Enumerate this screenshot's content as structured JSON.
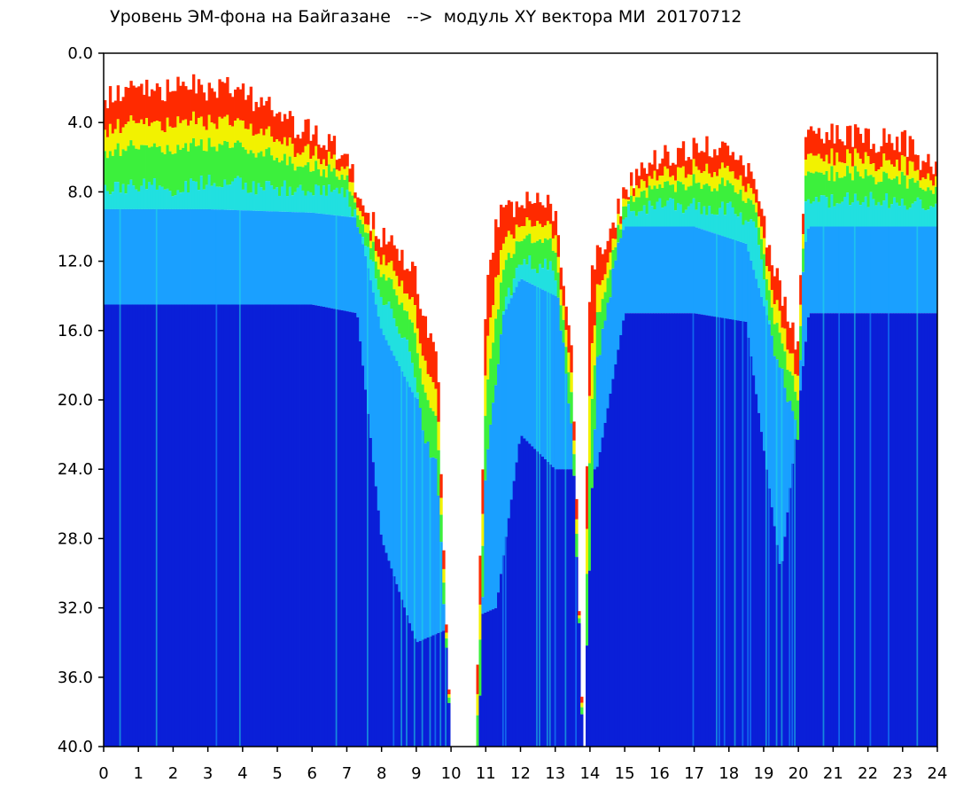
{
  "chart_data": {
    "type": "heatmap",
    "title": "Уровень ЭМ-фона на Байгазане   -->  модуль XY вектора МИ  20170712",
    "xlabel": "",
    "ylabel": "",
    "xlim": [
      0,
      24
    ],
    "ylim": [
      0,
      40
    ],
    "y_inverted": true,
    "x_ticks": [
      "0",
      "1",
      "2",
      "3",
      "4",
      "5",
      "6",
      "7",
      "8",
      "9",
      "10",
      "11",
      "12",
      "13",
      "14",
      "15",
      "16",
      "17",
      "18",
      "19",
      "20",
      "21",
      "22",
      "23",
      "24"
    ],
    "y_ticks": [
      "0.0",
      "4.0",
      "8.0",
      "12.0",
      "16.0",
      "20.0",
      "24.0",
      "28.0",
      "32.0",
      "36.0",
      "40.0"
    ],
    "color_scale": [
      "#0a1fd8",
      "#1aa0ff",
      "#21e0e0",
      "#3cf03c",
      "#f2f200",
      "#ff2a00"
    ],
    "grid": false,
    "upper_boundary": [
      [
        0.0,
        2.5
      ],
      [
        0.5,
        2.2
      ],
      [
        1.0,
        2.0
      ],
      [
        1.5,
        2.3
      ],
      [
        2.0,
        2.2
      ],
      [
        2.5,
        1.8
      ],
      [
        3.0,
        2.0
      ],
      [
        3.5,
        1.9
      ],
      [
        4.0,
        2.3
      ],
      [
        4.5,
        2.8
      ],
      [
        5.0,
        3.6
      ],
      [
        5.5,
        4.2
      ],
      [
        6.0,
        4.6
      ],
      [
        6.5,
        5.2
      ],
      [
        7.0,
        6.0
      ],
      [
        7.3,
        8.0
      ],
      [
        7.6,
        9.5
      ],
      [
        8.0,
        10.5
      ],
      [
        8.5,
        11.5
      ],
      [
        9.0,
        13.0
      ],
      [
        9.3,
        16.0
      ],
      [
        9.6,
        17.5
      ],
      [
        10.0,
        40.0
      ],
      [
        10.7,
        40.0
      ],
      [
        10.9,
        25.0
      ],
      [
        11.0,
        14.0
      ],
      [
        11.3,
        9.5
      ],
      [
        12.0,
        8.5
      ],
      [
        13.0,
        9.0
      ],
      [
        13.5,
        18.0
      ],
      [
        13.8,
        40.0
      ],
      [
        14.0,
        12.0
      ],
      [
        14.5,
        11.0
      ],
      [
        15.0,
        8.0
      ],
      [
        15.5,
        6.5
      ],
      [
        16.0,
        6.0
      ],
      [
        17.0,
        5.5
      ],
      [
        18.0,
        5.5
      ],
      [
        18.5,
        6.5
      ],
      [
        19.0,
        10.0
      ],
      [
        19.5,
        14.0
      ],
      [
        20.0,
        17.0
      ],
      [
        20.2,
        5.0
      ],
      [
        21.0,
        4.5
      ],
      [
        22.0,
        5.0
      ],
      [
        23.0,
        5.0
      ],
      [
        24.0,
        7.0
      ]
    ],
    "lower_red_boundary": [
      [
        0.0,
        7.8
      ],
      [
        1.0,
        7.6
      ],
      [
        2.0,
        7.8
      ],
      [
        3.0,
        7.5
      ],
      [
        4.0,
        7.6
      ],
      [
        5.0,
        7.8
      ],
      [
        6.0,
        7.8
      ],
      [
        7.0,
        8.2
      ],
      [
        7.4,
        10.0
      ],
      [
        8.0,
        14.0
      ],
      [
        8.8,
        17.0
      ],
      [
        9.2,
        22.0
      ],
      [
        9.6,
        24.0
      ],
      [
        10.0,
        40.0
      ],
      [
        10.8,
        40.0
      ],
      [
        11.0,
        24.0
      ],
      [
        11.5,
        15.0
      ],
      [
        12.0,
        12.0
      ],
      [
        13.0,
        12.5
      ],
      [
        13.5,
        22.0
      ],
      [
        13.8,
        40.0
      ],
      [
        14.2,
        18.0
      ],
      [
        15.0,
        9.0
      ],
      [
        16.0,
        8.8
      ],
      [
        17.0,
        8.8
      ],
      [
        18.0,
        9.0
      ],
      [
        18.8,
        10.0
      ],
      [
        19.3,
        17.0
      ],
      [
        20.0,
        22.0
      ],
      [
        20.2,
        8.5
      ],
      [
        21.0,
        8.5
      ],
      [
        22.0,
        8.5
      ],
      [
        23.0,
        8.5
      ],
      [
        24.0,
        9.0
      ]
    ],
    "cyan_band": [
      [
        0.0,
        9.0,
        14.5
      ],
      [
        3.0,
        9.0,
        14.5
      ],
      [
        6.0,
        9.2,
        14.5
      ],
      [
        7.3,
        9.5,
        15.0
      ],
      [
        8.0,
        16.0,
        28.0
      ],
      [
        9.0,
        20.0,
        34.0
      ],
      [
        11.3,
        16.0,
        32.0
      ],
      [
        12.0,
        13.0,
        22.0
      ],
      [
        13.0,
        14.0,
        24.0
      ],
      [
        14.2,
        14.0,
        24.0
      ],
      [
        15.0,
        10.0,
        15.0
      ],
      [
        16.0,
        10.0,
        15.0
      ],
      [
        17.0,
        10.0,
        15.0
      ],
      [
        18.5,
        11.0,
        15.5
      ],
      [
        19.5,
        18.0,
        30.0
      ],
      [
        20.3,
        10.0,
        15.0
      ],
      [
        24.0,
        10.0,
        15.0
      ]
    ],
    "gaps": [
      [
        10.0,
        10.75
      ],
      [
        13.8,
        13.9
      ]
    ]
  }
}
